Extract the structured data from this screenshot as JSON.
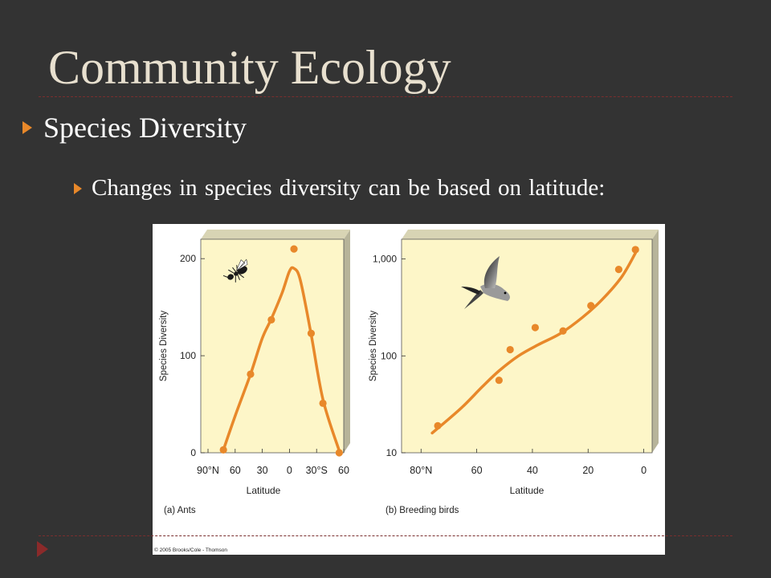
{
  "slide": {
    "title": "Community Ecology",
    "bullet1": "Species Diversity",
    "bullet2": "Changes in species diversity can be based on latitude:",
    "colors": {
      "background": "#333333",
      "title": "#e8e0cf",
      "bullet_marker": "#e8882a",
      "divider": "#7a2e2e"
    }
  },
  "figure": {
    "copyright": "© 2005 Brooks/Cole - Thomson",
    "colors": {
      "panel_bg": "#fdf6c8",
      "series": "#e8882a"
    },
    "icons": [
      "ant-icon",
      "bird-icon"
    ]
  },
  "chart_data": [
    {
      "type": "line",
      "panel_label": "(a) Ants",
      "xlabel": "Latitude",
      "ylabel": "Species Diversity",
      "x_ticks": [
        {
          "v": -90,
          "label": "90°N"
        },
        {
          "v": -60,
          "label": "60"
        },
        {
          "v": -30,
          "label": "30"
        },
        {
          "v": 0,
          "label": "0"
        },
        {
          "v": 30,
          "label": "30°S"
        },
        {
          "v": 60,
          "label": "60"
        }
      ],
      "y_ticks": [
        {
          "v": 0,
          "label": "0"
        },
        {
          "v": 100,
          "label": "100"
        },
        {
          "v": 200,
          "label": "200"
        }
      ],
      "xlim": [
        -98,
        60
      ],
      "ylim": [
        0,
        220
      ],
      "y_scale": "linear",
      "points": {
        "x": [
          -73,
          -43,
          -20,
          5,
          24,
          37,
          55
        ],
        "y": [
          3,
          81,
          137,
          210,
          123,
          51,
          0
        ]
      },
      "curve": {
        "x": [
          -73,
          -60,
          -43,
          -30,
          -20,
          -8,
          0,
          5,
          12,
          24,
          37,
          55
        ],
        "y": [
          3,
          38,
          81,
          118,
          138,
          165,
          187,
          190,
          178,
          122,
          55,
          2
        ]
      },
      "grid": false,
      "legend": "none"
    },
    {
      "type": "line",
      "panel_label": "(b) Breeding birds",
      "xlabel": "Latitude",
      "ylabel": "Species Diversity",
      "x_ticks": [
        {
          "v": 80,
          "label": "80°N"
        },
        {
          "v": 60,
          "label": "60"
        },
        {
          "v": 40,
          "label": "40"
        },
        {
          "v": 20,
          "label": "20"
        },
        {
          "v": 0,
          "label": "0"
        }
      ],
      "y_ticks": [
        {
          "v": 10,
          "label": "10"
        },
        {
          "v": 100,
          "label": "100"
        },
        {
          "v": 1000,
          "label": "1,000"
        }
      ],
      "xlim": [
        87,
        -3
      ],
      "ylim": [
        10,
        1600
      ],
      "y_scale": "log",
      "points": {
        "x": [
          74,
          52,
          48,
          39,
          29,
          19,
          9,
          3
        ],
        "y": [
          19,
          56,
          116,
          196,
          181,
          330,
          780,
          1250
        ]
      },
      "curve": {
        "x": [
          76,
          72,
          65,
          58,
          52,
          45,
          38,
          30,
          22,
          15,
          8,
          3
        ],
        "y": [
          16,
          20,
          30,
          48,
          70,
          100,
          130,
          170,
          250,
          380,
          650,
          1150
        ]
      },
      "grid": false,
      "legend": "none"
    }
  ]
}
